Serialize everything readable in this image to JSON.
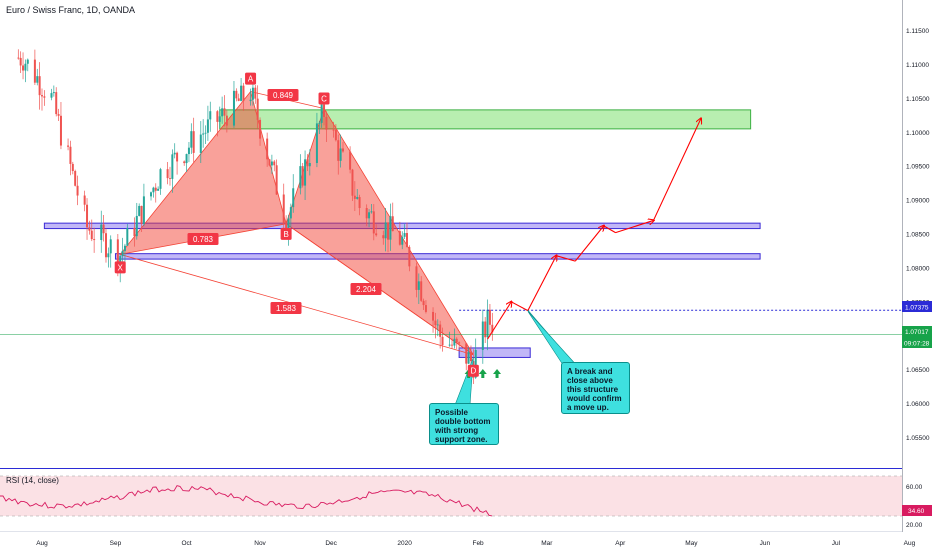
{
  "header": {
    "symbol_title": "Euro / Swiss Franc, 1D, OANDA"
  },
  "rsi": {
    "label": "RSI (14, close)",
    "ticks": [
      "60.00",
      "20.00"
    ],
    "value_tag": "34.60"
  },
  "price_tags": {
    "level": "1.07375",
    "last": "1.07017",
    "countdown": "09:07:28"
  },
  "pattern_labels": {
    "x": "X",
    "a": "A",
    "b": "B",
    "c": "C",
    "d": "D"
  },
  "ratios": [
    "0.849",
    "0.783",
    "2.204",
    "1.583"
  ],
  "callouts": {
    "double_bottom": "Possible double bottom with strong support zone.",
    "breakout": "A break and close above this structure would confirm a move up."
  },
  "colors": {
    "bull": "#26a69a",
    "bear": "#ef5350",
    "pattern_fill": "#f44336",
    "resistance_zone": "#7ee06f",
    "support_zone": "#8e7cf0",
    "projection": "#ff0000",
    "callout": "#3ee0df",
    "level_line": "#2b2bd6"
  },
  "chart_data": {
    "type": "line",
    "title": "Euro / Swiss Franc, 1D, OANDA",
    "x_ticks": [
      "Aug",
      "Sep",
      "Oct",
      "Nov",
      "Dec",
      "2020",
      "Feb",
      "Mar",
      "Apr",
      "May",
      "Jun",
      "Jul",
      "Aug"
    ],
    "y_ticks": [
      "1.11500",
      "1.11000",
      "1.10500",
      "1.10000",
      "1.09500",
      "1.09000",
      "1.08500",
      "1.08000",
      "1.07500",
      "1.07000",
      "1.06500",
      "1.06000",
      "1.05500"
    ],
    "ylim": [
      1.0505,
      1.1195
    ],
    "series": [
      {
        "x": [
          "2019-07-24",
          "2019-08-05",
          "2019-08-20",
          "2019-09-03",
          "2019-09-20",
          "2019-10-08",
          "2019-10-28",
          "2019-11-12",
          "2019-11-28",
          "2019-12-13",
          "2019-12-31",
          "2020-01-16",
          "2020-01-30",
          "2020-02-05"
        ],
        "values": [
          1.111,
          1.105,
          1.086,
          1.082,
          1.094,
          1.1,
          1.106,
          1.087,
          1.103,
          1.089,
          1.084,
          1.07,
          1.066,
          1.072
        ]
      }
    ],
    "harmonic_points": {
      "X": [
        "2019-09-03",
        1.082
      ],
      "A": [
        "2019-10-28",
        1.106
      ],
      "B": [
        "2019-11-12",
        1.0865
      ],
      "C": [
        "2019-11-28",
        1.1035
      ],
      "D": [
        "2020-01-30",
        1.0672
      ]
    },
    "zones": {
      "resistance": [
        1.1005,
        1.1033
      ],
      "upper_support": [
        1.0858,
        1.0866
      ],
      "lower_support": [
        1.0813,
        1.0821
      ],
      "d_zone": [
        1.0668,
        1.0682
      ]
    },
    "levels": {
      "break_level": 1.07375,
      "last_price": 1.07017
    },
    "projection": [
      [
        "2020-02-05",
        1.0695
      ],
      [
        "2020-02-15",
        1.075
      ],
      [
        "2020-02-22",
        1.0737
      ],
      [
        "2020-03-05",
        1.0818
      ],
      [
        "2020-03-13",
        1.081
      ],
      [
        "2020-03-25",
        1.0862
      ],
      [
        "2020-03-30",
        1.0852
      ],
      [
        "2020-04-15",
        1.087
      ],
      [
        "2020-05-05",
        1.102
      ]
    ],
    "grid": false,
    "legend": "none"
  }
}
